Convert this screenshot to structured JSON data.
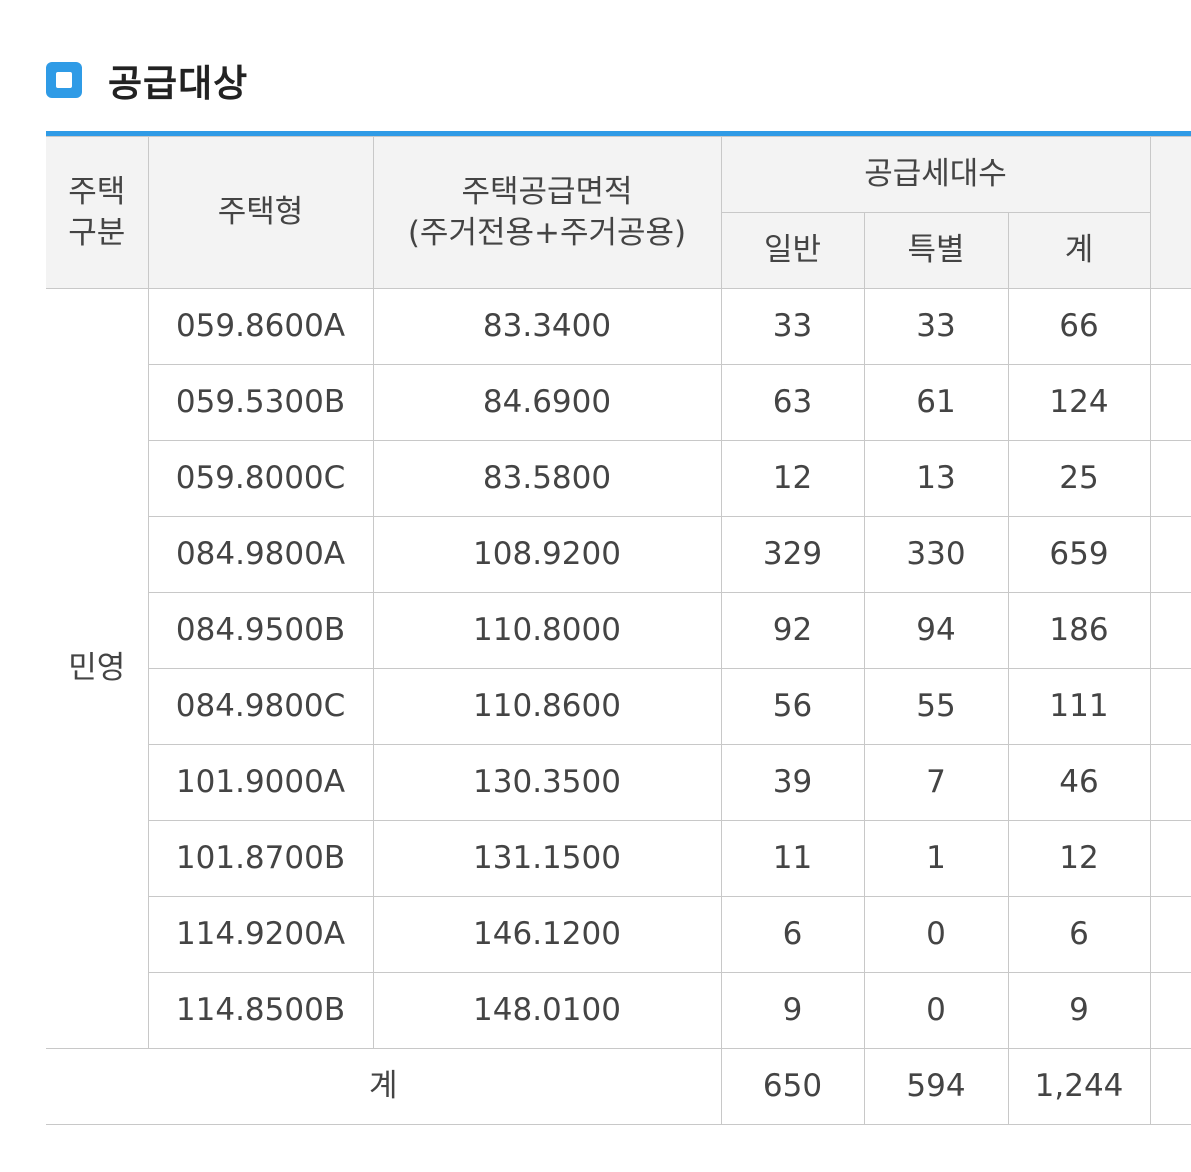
{
  "section": {
    "title": "공급대상"
  },
  "table": {
    "header": {
      "type_group_line1": "주택",
      "type_group_line2": "구분",
      "housing_type": "주택형",
      "area_line1": "주택공급면적",
      "area_line2": "(주거전용+주거공용)",
      "units_group": "공급세대수",
      "general": "일반",
      "special": "특별",
      "total": "계"
    },
    "region_label": "민영",
    "rows": [
      {
        "type": "059.8600A",
        "area": "83.3400",
        "general": "33",
        "special": "33",
        "total": "66"
      },
      {
        "type": "059.5300B",
        "area": "84.6900",
        "general": "63",
        "special": "61",
        "total": "124"
      },
      {
        "type": "059.8000C",
        "area": "83.5800",
        "general": "12",
        "special": "13",
        "total": "25"
      },
      {
        "type": "084.9800A",
        "area": "108.9200",
        "general": "329",
        "special": "330",
        "total": "659"
      },
      {
        "type": "084.9500B",
        "area": "110.8000",
        "general": "92",
        "special": "94",
        "total": "186"
      },
      {
        "type": "084.9800C",
        "area": "110.8600",
        "general": "56",
        "special": "55",
        "total": "111"
      },
      {
        "type": "101.9000A",
        "area": "130.3500",
        "general": "39",
        "special": "7",
        "total": "46"
      },
      {
        "type": "101.8700B",
        "area": "131.1500",
        "general": "11",
        "special": "1",
        "total": "12"
      },
      {
        "type": "114.9200A",
        "area": "146.1200",
        "general": "6",
        "special": "0",
        "total": "6"
      },
      {
        "type": "114.8500B",
        "area": "148.0100",
        "general": "9",
        "special": "0",
        "total": "9"
      }
    ],
    "totals": {
      "label": "계",
      "general": "650",
      "special": "594",
      "total": "1,244"
    }
  },
  "colors": {
    "accent": "#2f9be6",
    "header_bg": "#f3f3f3",
    "border": "#c8c8c8"
  }
}
